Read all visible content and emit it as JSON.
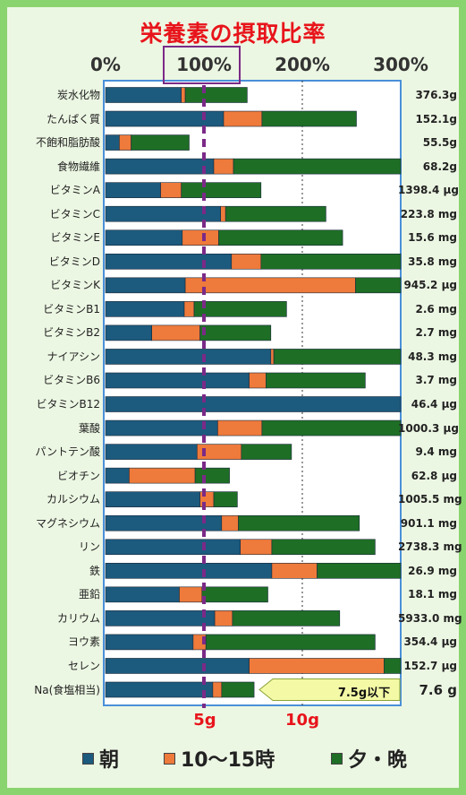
{
  "title": "栄養素の摂取比率",
  "colors": {
    "morning": "#1c5a7e",
    "snack": "#ee7a3b",
    "evening": "#1e6e26",
    "marker": "#7b2a87",
    "accent": "#e8141b",
    "callout_fill": "#f4f9a6"
  },
  "chart_data": {
    "type": "bar",
    "orientation": "horizontal",
    "stacked": true,
    "title": "栄養素の摂取比率",
    "x_axis": {
      "ticks": [
        "0%",
        "100%",
        "200%",
        "300%"
      ],
      "xlim": [
        0,
        300
      ],
      "unit": "%"
    },
    "reference_line": {
      "value": 100,
      "style": "dashed"
    },
    "grid_lines": [
      200
    ],
    "series": [
      {
        "name": "朝",
        "color": "#1c5a7e"
      },
      {
        "name": "10〜15時",
        "color": "#ee7a3b"
      },
      {
        "name": "夕・晩",
        "color": "#1e6e26"
      }
    ],
    "rows": [
      {
        "label": "炭水化物",
        "amount": "376.3g",
        "values": [
          77,
          4,
          63
        ]
      },
      {
        "label": "たんぱく質",
        "amount": "152.1g",
        "values": [
          120,
          39,
          96
        ]
      },
      {
        "label": "不飽和脂肪酸",
        "amount": "55.5g",
        "values": [
          14,
          12,
          59
        ]
      },
      {
        "label": "食物繊維",
        "amount": "68.2g",
        "values": [
          110,
          20,
          175
        ]
      },
      {
        "label": "ビタミンA",
        "amount": "1398.4 μg",
        "values": [
          56,
          21,
          81
        ]
      },
      {
        "label": "ビタミンC",
        "amount": "223.8 mg",
        "values": [
          117,
          5,
          102
        ]
      },
      {
        "label": "ビタミンE",
        "amount": "15.6 mg",
        "values": [
          78,
          37,
          126
        ]
      },
      {
        "label": "ビタミンD",
        "amount": "35.8 mg",
        "values": [
          128,
          30,
          145
        ]
      },
      {
        "label": "ビタミンK",
        "amount": "945.2 μg",
        "values": [
          81,
          173,
          50
        ]
      },
      {
        "label": "ビタミンB1",
        "amount": "2.6 mg",
        "values": [
          80,
          10,
          94
        ]
      },
      {
        "label": "ビタミンB2",
        "amount": "2.7 mg",
        "values": [
          47,
          49,
          72
        ]
      },
      {
        "label": "ナイアシン",
        "amount": "48.3 mg",
        "values": [
          168,
          3,
          130
        ]
      },
      {
        "label": "ビタミンB6",
        "amount": "3.7 mg",
        "values": [
          146,
          17,
          101
        ]
      },
      {
        "label": "ビタミンB12",
        "amount": "46.4 μg",
        "values": [
          300,
          0,
          0
        ]
      },
      {
        "label": "葉酸",
        "amount": "1000.3 μg",
        "values": [
          114,
          45,
          141
        ]
      },
      {
        "label": "パントテン酸",
        "amount": "9.4 mg",
        "values": [
          93,
          45,
          51
        ]
      },
      {
        "label": "ビオチン",
        "amount": "62.8 μg",
        "values": [
          24,
          67,
          35
        ]
      },
      {
        "label": "カルシウム",
        "amount": "1005.5 mg",
        "values": [
          96,
          14,
          24
        ]
      },
      {
        "label": "マグネシウム",
        "amount": "901.1 mg",
        "values": [
          118,
          17,
          123
        ]
      },
      {
        "label": "リン",
        "amount": "2738.3 mg",
        "values": [
          137,
          32,
          105
        ]
      },
      {
        "label": "鉄",
        "amount": "26.9 mg",
        "values": [
          169,
          46,
          85
        ]
      },
      {
        "label": "亜鉛",
        "amount": "18.1 mg",
        "values": [
          75,
          23,
          67
        ]
      },
      {
        "label": "カリウム",
        "amount": "5933.0 mg",
        "values": [
          111,
          18,
          109
        ]
      },
      {
        "label": "ヨウ素",
        "amount": "354.4 μg",
        "values": [
          89,
          13,
          172
        ]
      },
      {
        "label": "セレン",
        "amount": "152.7 μg",
        "values": [
          146,
          137,
          17
        ]
      },
      {
        "label": "Na(食塩相当)",
        "amount": "7.6 g",
        "values": [
          109,
          9,
          33
        ]
      }
    ],
    "sodium_axis": {
      "ticks": [
        "5g",
        "10g"
      ]
    },
    "sodium_callout": "7.5g以下"
  },
  "legend": [
    {
      "label": "朝",
      "color": "#1c5a7e"
    },
    {
      "label": "10〜15時",
      "color": "#ee7a3b"
    },
    {
      "label": "夕・晩",
      "color": "#1e6e26"
    }
  ]
}
